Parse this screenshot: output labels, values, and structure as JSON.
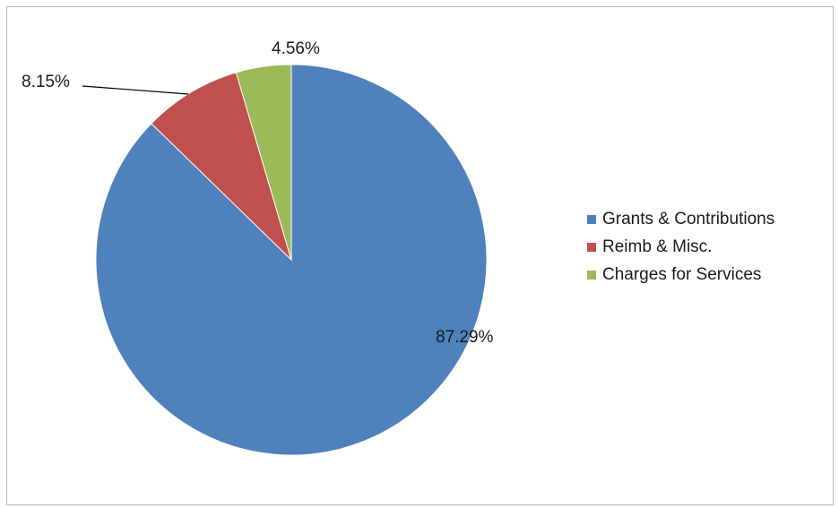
{
  "chart_data": {
    "type": "pie",
    "categories": [
      "Grants & Contributions",
      "Reimb & Misc.",
      "Charges for Services"
    ],
    "values": [
      87.29,
      8.15,
      4.56
    ],
    "data_labels": [
      "87.29%",
      "8.15%",
      "4.56%"
    ],
    "colors": [
      "#4f81bd",
      "#c0504d",
      "#9bbb59"
    ],
    "legend_position": "right",
    "start_angle": "top (12 o'clock), clockwise"
  },
  "legend": {
    "items": [
      {
        "label": "Grants & Contributions",
        "color": "#4f81bd"
      },
      {
        "label": "Reimb & Misc.",
        "color": "#c0504d"
      },
      {
        "label": "Charges for Services",
        "color": "#9bbb59"
      }
    ]
  }
}
